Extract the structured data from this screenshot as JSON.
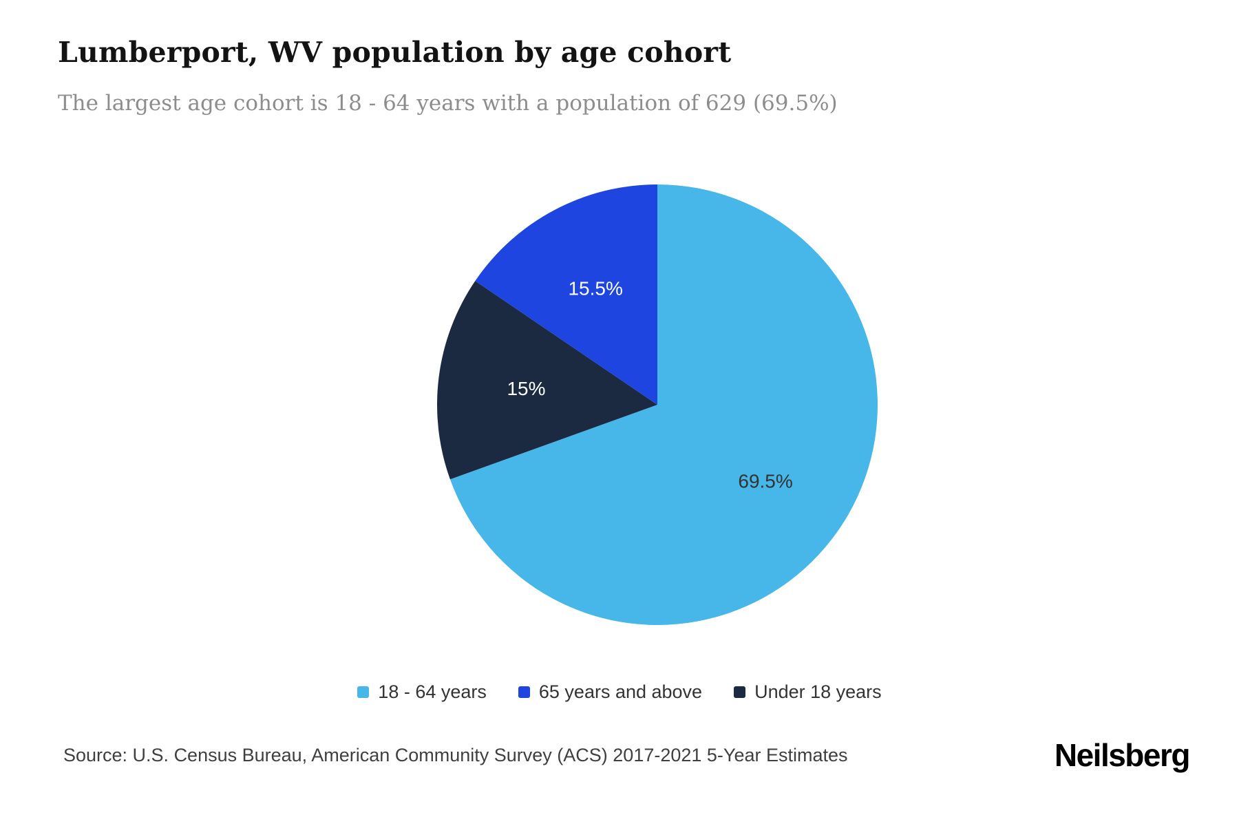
{
  "header": {
    "title": "Lumberport, WV population by age cohort",
    "subtitle": "The largest age cohort is 18 - 64 years with a population of 629 (69.5%)"
  },
  "chart_data": {
    "type": "pie",
    "title": "Lumberport, WV population by age cohort",
    "unit": "percent",
    "start_angle_deg": 0,
    "direction": "clockwise",
    "slices": [
      {
        "label": "18 - 64 years",
        "value": 69.5,
        "display": "69.5%",
        "color": "#47b6e8",
        "text_color": "#333333"
      },
      {
        "label": "Under 18 years",
        "value": 15.0,
        "display": "15%",
        "color": "#1b2a41",
        "text_color": "#ffffff"
      },
      {
        "label": "65 years and above",
        "value": 15.5,
        "display": "15.5%",
        "color": "#1e45e0",
        "text_color": "#ffffff"
      }
    ],
    "legend": [
      "18 - 64 years",
      "65 years and above",
      "Under 18 years"
    ],
    "legend_position": "bottom",
    "annotations": {
      "largest_cohort_label": "18 - 64 years",
      "largest_cohort_population": 629,
      "largest_cohort_percent": 69.5
    }
  },
  "footer": {
    "source": "Source: U.S. Census Bureau, American Community Survey (ACS) 2017-2021 5-Year Estimates",
    "brand": "Neilsberg"
  },
  "colors": {
    "background": "#ffffff",
    "title_text": "#131313",
    "subtitle_text": "#8d8d8d",
    "legend_text": "#333333",
    "source_text": "#3f3f3f"
  }
}
